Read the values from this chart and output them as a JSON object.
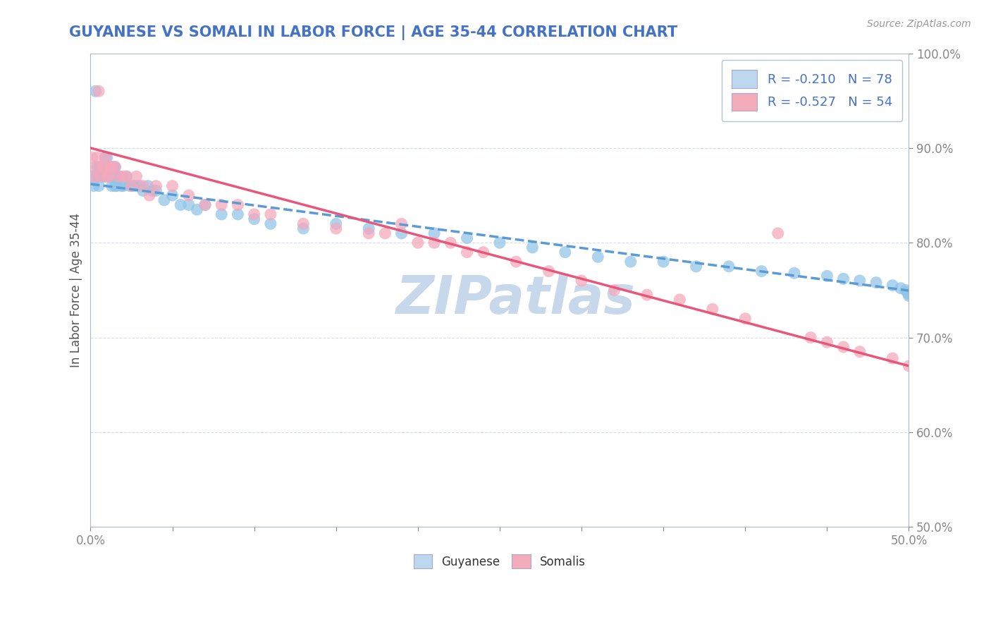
{
  "title": "GUYANESE VS SOMALI IN LABOR FORCE | AGE 35-44 CORRELATION CHART",
  "source_text": "Source: ZipAtlas.com",
  "ylabel": "In Labor Force | Age 35-44",
  "xlim": [
    0.0,
    0.5
  ],
  "ylim": [
    0.5,
    1.0
  ],
  "xticks": [
    0.0,
    0.05,
    0.1,
    0.15,
    0.2,
    0.25,
    0.3,
    0.35,
    0.4,
    0.45,
    0.5
  ],
  "yticks": [
    0.5,
    0.6,
    0.7,
    0.8,
    0.9,
    1.0
  ],
  "yticklabels": [
    "50.0%",
    "60.0%",
    "70.0%",
    "80.0%",
    "90.0%",
    "100.0%"
  ],
  "r_guyanese": -0.21,
  "n_guyanese": 78,
  "r_somali": -0.527,
  "n_somali": 54,
  "color_guyanese": "#92C5E8",
  "color_somali": "#F5A8BC",
  "trendline_guyanese": "#5B9BD5",
  "trendline_somali": "#E8567A",
  "background_color": "#FFFFFF",
  "grid_color": "#D0D8E8",
  "title_color": "#4472C4",
  "watermark_text": "ZIPatlas",
  "watermark_color": "#C8D8EC",
  "legend_box_color_guyanese": "#BDD7EE",
  "legend_box_color_somali": "#F4ABBA",
  "guyanese_x": [
    0.001,
    0.002,
    0.003,
    0.004,
    0.004,
    0.005,
    0.005,
    0.006,
    0.006,
    0.007,
    0.007,
    0.008,
    0.008,
    0.009,
    0.009,
    0.01,
    0.01,
    0.011,
    0.011,
    0.012,
    0.012,
    0.013,
    0.013,
    0.014,
    0.014,
    0.015,
    0.015,
    0.016,
    0.016,
    0.017,
    0.018,
    0.019,
    0.02,
    0.022,
    0.024,
    0.026,
    0.028,
    0.03,
    0.032,
    0.035,
    0.038,
    0.04,
    0.045,
    0.05,
    0.055,
    0.06,
    0.065,
    0.07,
    0.08,
    0.09,
    0.1,
    0.11,
    0.13,
    0.15,
    0.17,
    0.19,
    0.21,
    0.23,
    0.25,
    0.27,
    0.29,
    0.31,
    0.33,
    0.35,
    0.37,
    0.39,
    0.41,
    0.43,
    0.45,
    0.46,
    0.47,
    0.48,
    0.49,
    0.495,
    0.498,
    0.499,
    0.5,
    0.5
  ],
  "guyanese_y": [
    0.87,
    0.86,
    0.96,
    0.87,
    0.88,
    0.86,
    0.88,
    0.87,
    0.88,
    0.87,
    0.88,
    0.87,
    0.88,
    0.89,
    0.87,
    0.87,
    0.89,
    0.87,
    0.88,
    0.87,
    0.88,
    0.86,
    0.87,
    0.88,
    0.87,
    0.86,
    0.88,
    0.87,
    0.86,
    0.87,
    0.87,
    0.86,
    0.86,
    0.87,
    0.86,
    0.86,
    0.86,
    0.86,
    0.855,
    0.86,
    0.855,
    0.855,
    0.845,
    0.85,
    0.84,
    0.84,
    0.835,
    0.84,
    0.83,
    0.83,
    0.825,
    0.82,
    0.815,
    0.82,
    0.815,
    0.81,
    0.81,
    0.805,
    0.8,
    0.795,
    0.79,
    0.785,
    0.78,
    0.78,
    0.775,
    0.775,
    0.77,
    0.768,
    0.765,
    0.762,
    0.76,
    0.758,
    0.755,
    0.752,
    0.75,
    0.748,
    0.746,
    0.744
  ],
  "somali_x": [
    0.001,
    0.002,
    0.003,
    0.004,
    0.005,
    0.006,
    0.007,
    0.008,
    0.009,
    0.01,
    0.011,
    0.012,
    0.013,
    0.015,
    0.017,
    0.02,
    0.022,
    0.025,
    0.028,
    0.032,
    0.036,
    0.04,
    0.05,
    0.06,
    0.07,
    0.08,
    0.09,
    0.1,
    0.11,
    0.13,
    0.15,
    0.17,
    0.18,
    0.19,
    0.2,
    0.21,
    0.22,
    0.23,
    0.24,
    0.26,
    0.28,
    0.3,
    0.32,
    0.34,
    0.36,
    0.38,
    0.4,
    0.42,
    0.44,
    0.45,
    0.46,
    0.47,
    0.49,
    0.5
  ],
  "somali_y": [
    0.89,
    0.87,
    0.88,
    0.89,
    0.96,
    0.87,
    0.88,
    0.88,
    0.89,
    0.87,
    0.87,
    0.88,
    0.88,
    0.88,
    0.87,
    0.87,
    0.87,
    0.86,
    0.87,
    0.86,
    0.85,
    0.86,
    0.86,
    0.85,
    0.84,
    0.84,
    0.84,
    0.83,
    0.83,
    0.82,
    0.815,
    0.81,
    0.81,
    0.82,
    0.8,
    0.8,
    0.8,
    0.79,
    0.79,
    0.78,
    0.77,
    0.76,
    0.75,
    0.745,
    0.74,
    0.73,
    0.72,
    0.81,
    0.7,
    0.695,
    0.69,
    0.685,
    0.678,
    0.67
  ]
}
